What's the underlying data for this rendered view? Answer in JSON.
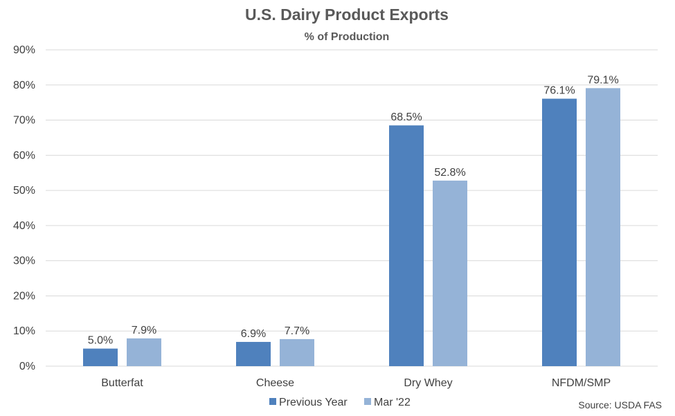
{
  "chart_data": {
    "type": "bar",
    "title": "U.S. Dairy Product Exports",
    "subtitle": "% of Production",
    "xlabel": "",
    "ylabel": "",
    "categories": [
      "Butterfat",
      "Cheese",
      "Dry Whey",
      "NFDM/SMP"
    ],
    "series": [
      {
        "name": "Previous Year",
        "color": "#4F81BD",
        "values": [
          5.0,
          6.9,
          68.5,
          76.1
        ],
        "labels": [
          "5.0%",
          "6.9%",
          "68.5%",
          "76.1%"
        ]
      },
      {
        "name": "Mar '22",
        "color": "#95B3D7",
        "values": [
          7.9,
          7.7,
          52.8,
          79.1
        ],
        "labels": [
          "7.9%",
          "7.7%",
          "52.8%",
          "79.1%"
        ]
      }
    ],
    "ylim": [
      0,
      90
    ],
    "yticks": [
      0,
      10,
      20,
      30,
      40,
      50,
      60,
      70,
      80,
      90
    ],
    "ytick_labels": [
      "0%",
      "10%",
      "20%",
      "30%",
      "40%",
      "50%",
      "60%",
      "70%",
      "80%",
      "90%"
    ],
    "grid": true,
    "gridline_color": "#D9D9D9",
    "legend_position": "bottom",
    "source": "Source: USDA FAS"
  }
}
